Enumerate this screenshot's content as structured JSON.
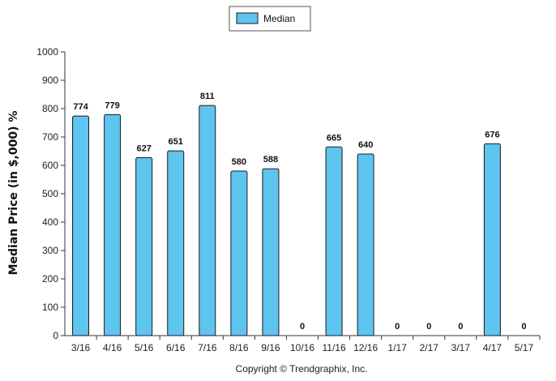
{
  "chart_data": {
    "type": "bar",
    "categories": [
      "3/16",
      "4/16",
      "5/16",
      "6/16",
      "7/16",
      "8/16",
      "9/16",
      "10/16",
      "11/16",
      "12/16",
      "1/17",
      "2/17",
      "3/17",
      "4/17",
      "5/17"
    ],
    "series": [
      {
        "name": "Median",
        "values": [
          774,
          779,
          627,
          651,
          811,
          580,
          588,
          0,
          665,
          640,
          0,
          0,
          0,
          676,
          0
        ]
      }
    ],
    "data_labels": [
      "774",
      "779",
      "627",
      "651",
      "811",
      "580",
      "588",
      "0",
      "665",
      "640",
      "0",
      "0",
      "0",
      "676",
      "0"
    ],
    "ylabel": "Median Price (in $,000) %",
    "ylim": [
      0,
      1000
    ],
    "yticks": [
      0,
      100,
      200,
      300,
      400,
      500,
      600,
      700,
      800,
      900,
      1000
    ],
    "grid": false,
    "legend_position": "top-center"
  },
  "legend": {
    "label": "Median"
  },
  "footer": {
    "copyright": "Copyright © Trendgraphix, Inc."
  },
  "colors": {
    "bar_fill": "#5ec4f0",
    "bar_stroke": "#1a1a1a",
    "axis": "#333333"
  }
}
